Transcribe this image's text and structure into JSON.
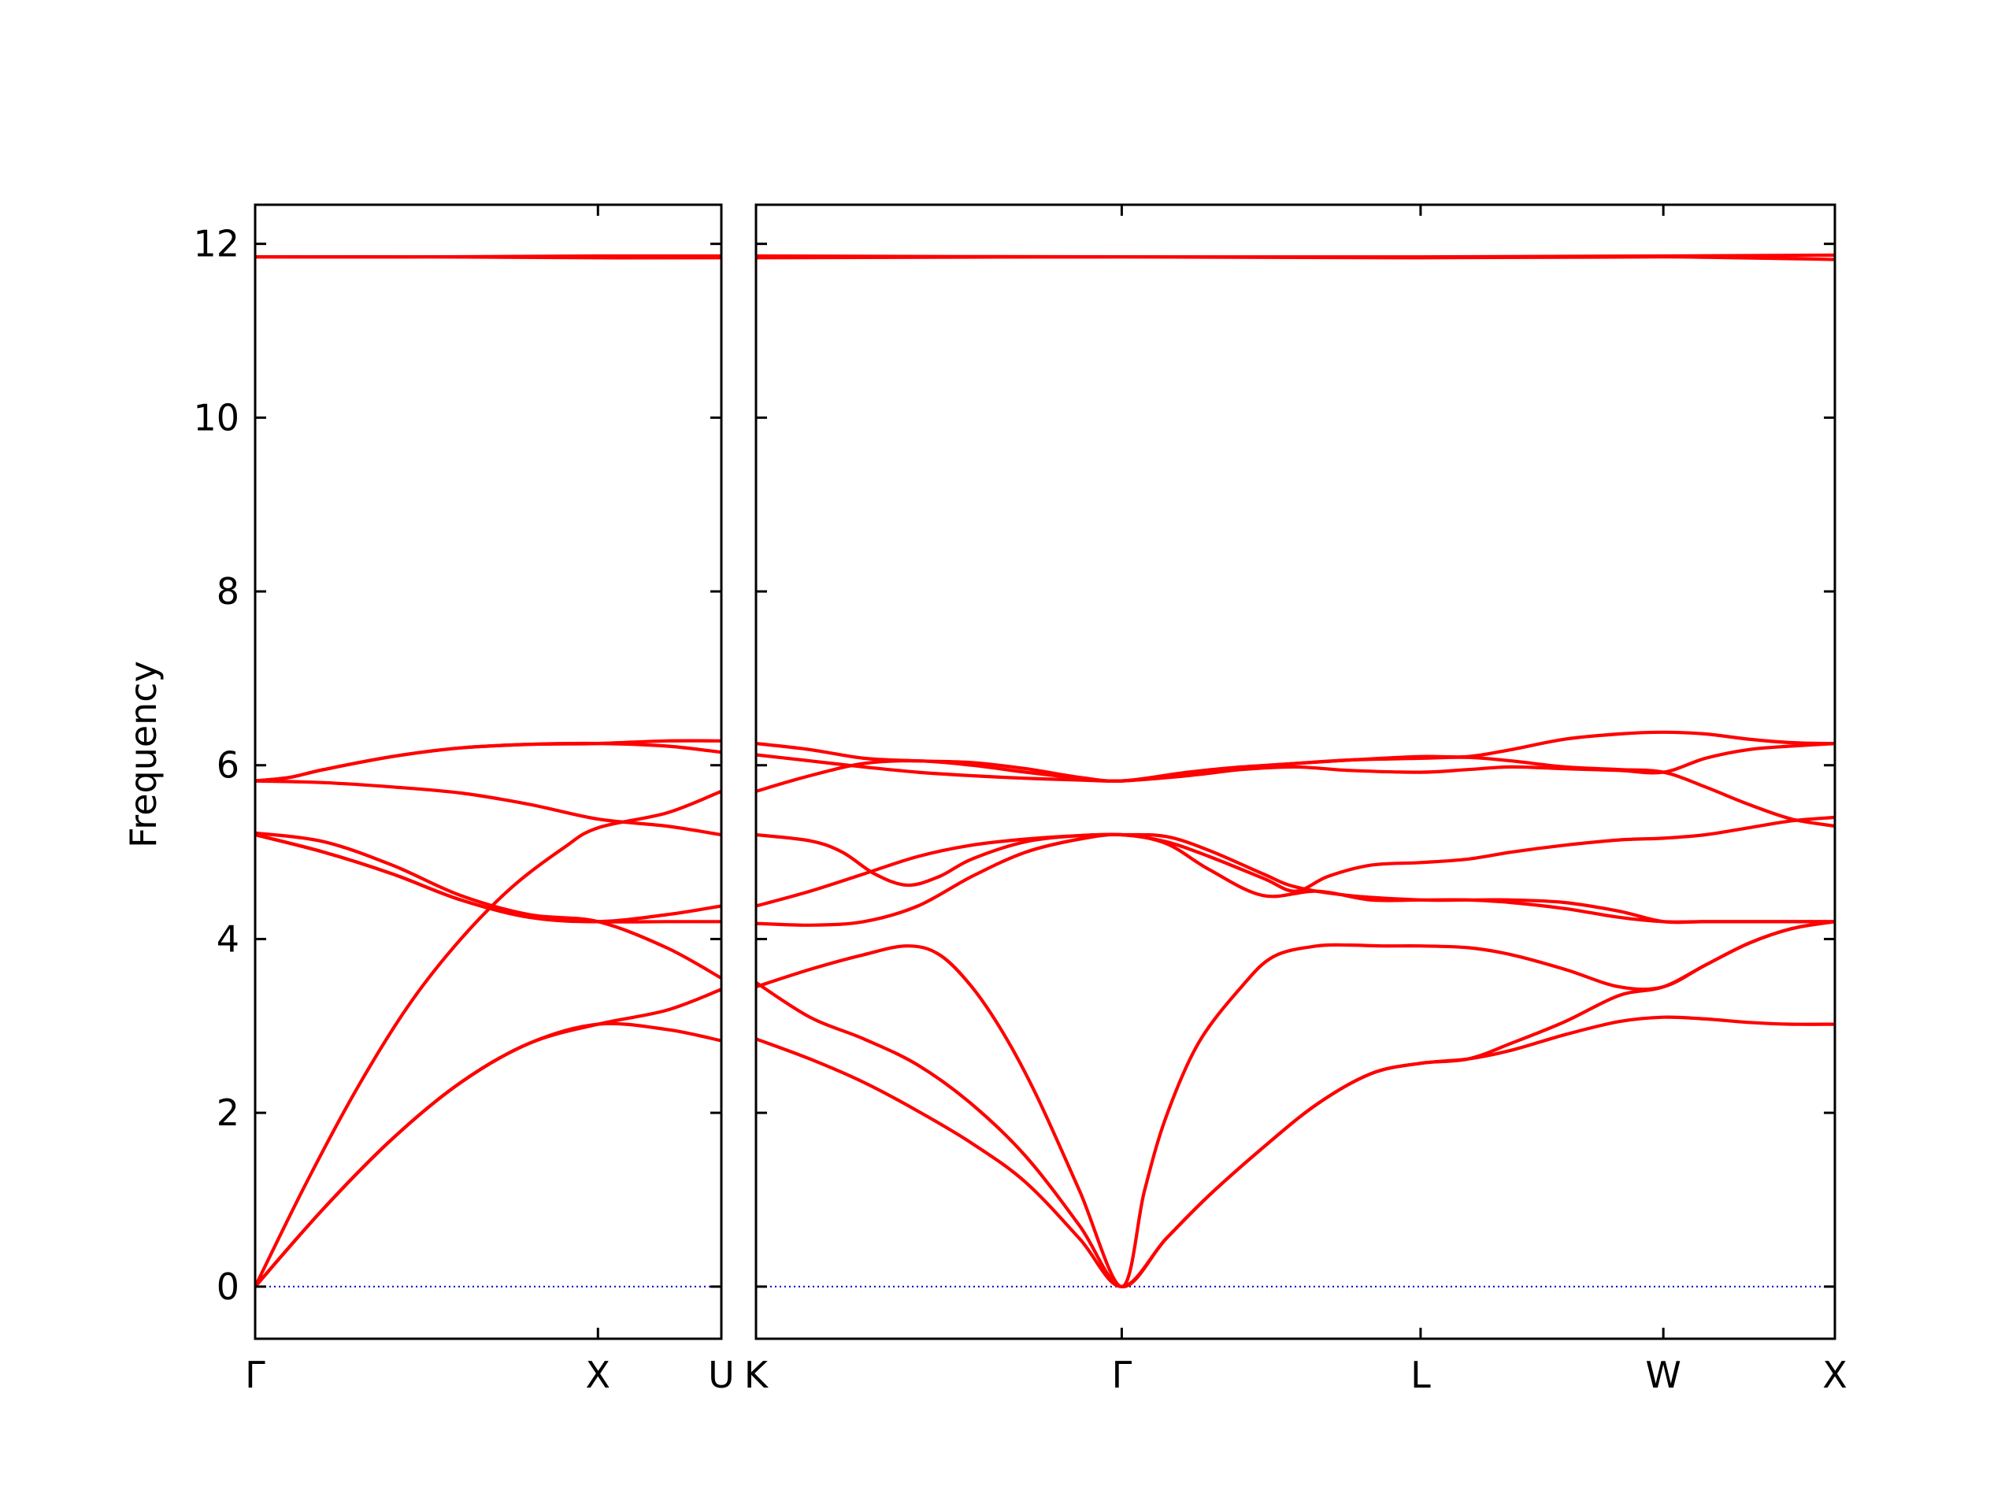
{
  "chart_data": {
    "type": "line",
    "ylabel": "Frequency",
    "ylim": [
      -0.6,
      12.45
    ],
    "yticks": [
      0,
      2,
      4,
      6,
      8,
      10,
      12
    ],
    "colors": {
      "bands": "#ff0000",
      "zero_line": "#0000cc",
      "frame": "#000000"
    },
    "panels": [
      {
        "name": "left",
        "xlim": [
          0,
          1.36
        ],
        "xticks": [
          {
            "label": "Γ",
            "x": 0
          },
          {
            "label": "X",
            "x": 1.0
          },
          {
            "label": "U",
            "x": 1.36
          }
        ],
        "bands": [
          {
            "x": [
              0,
              0.2,
              0.4,
              0.6,
              0.8,
              1.0,
              1.2,
              1.36
            ],
            "y": [
              0,
              0.9,
              1.7,
              2.35,
              2.8,
              3.02,
              2.96,
              2.83
            ]
          },
          {
            "x": [
              0,
              0.2,
              0.4,
              0.6,
              0.8,
              1.0,
              1.2,
              1.36
            ],
            "y": [
              0,
              0.9,
              1.7,
              2.35,
              2.8,
              3.02,
              3.18,
              3.42
            ]
          },
          {
            "x": [
              0,
              0.15,
              0.3,
              0.45,
              0.6,
              0.75,
              0.9,
              1.0,
              1.2,
              1.36
            ],
            "y": [
              0,
              1.2,
              2.3,
              3.25,
              4.0,
              4.6,
              5.05,
              5.28,
              5.45,
              5.7
            ]
          },
          {
            "x": [
              0,
              0.2,
              0.4,
              0.6,
              0.8,
              1.0,
              1.2,
              1.36
            ],
            "y": [
              5.22,
              5.12,
              4.85,
              4.5,
              4.28,
              4.2,
              3.9,
              3.55
            ]
          },
          {
            "x": [
              0,
              0.2,
              0.4,
              0.6,
              0.8,
              1.0,
              1.2,
              1.36
            ],
            "y": [
              5.2,
              5.0,
              4.75,
              4.45,
              4.25,
              4.2,
              4.2,
              4.2
            ]
          },
          {
            "x": [
              0,
              0.2,
              0.4,
              0.6,
              0.8,
              1.0,
              1.2,
              1.36
            ],
            "y": [
              5.2,
              5.0,
              4.75,
              4.45,
              4.25,
              4.2,
              4.28,
              4.38
            ]
          },
          {
            "x": [
              0,
              0.2,
              0.4,
              0.6,
              0.8,
              1.0,
              1.2,
              1.36
            ],
            "y": [
              5.82,
              5.8,
              5.75,
              5.68,
              5.55,
              5.38,
              5.3,
              5.2
            ]
          },
          {
            "x": [
              0,
              0.1,
              0.2,
              0.4,
              0.6,
              0.8,
              1.0,
              1.2,
              1.36
            ],
            "y": [
              5.82,
              5.86,
              5.95,
              6.1,
              6.2,
              6.24,
              6.25,
              6.22,
              6.15
            ]
          },
          {
            "x": [
              0,
              0.1,
              0.2,
              0.4,
              0.6,
              0.8,
              1.0,
              1.2,
              1.36
            ],
            "y": [
              5.82,
              5.86,
              5.95,
              6.1,
              6.2,
              6.24,
              6.25,
              6.28,
              6.28
            ]
          },
          {
            "x": [
              0,
              0.5,
              1.0,
              1.36
            ],
            "y": [
              11.85,
              11.85,
              11.84,
              11.84
            ]
          },
          {
            "x": [
              0,
              0.5,
              1.0,
              1.36
            ],
            "y": [
              11.85,
              11.85,
              11.86,
              11.86
            ]
          }
        ]
      },
      {
        "name": "right",
        "xlim": [
          0,
          1.0
        ],
        "xticks": [
          {
            "label": "K",
            "x": 0
          },
          {
            "label": "Γ",
            "x": 0.339
          },
          {
            "label": "L",
            "x": 0.616
          },
          {
            "label": "W",
            "x": 0.841
          },
          {
            "label": "X",
            "x": 1.0
          }
        ],
        "bands": [
          {
            "x": [
              0,
              0.05,
              0.1,
              0.15,
              0.2,
              0.25,
              0.3,
              0.339,
              0.38,
              0.42,
              0.47,
              0.52,
              0.57,
              0.616,
              0.66,
              0.7,
              0.75,
              0.8,
              0.841,
              0.88,
              0.92,
              0.96,
              1.0
            ],
            "y": [
              2.85,
              2.62,
              2.35,
              2.02,
              1.65,
              1.2,
              0.55,
              0,
              0.55,
              1.05,
              1.6,
              2.1,
              2.45,
              2.57,
              2.62,
              2.72,
              2.9,
              3.05,
              3.1,
              3.08,
              3.04,
              3.02,
              3.02
            ]
          },
          {
            "x": [
              0,
              0.05,
              0.1,
              0.15,
              0.2,
              0.25,
              0.3,
              0.339,
              0.38,
              0.42,
              0.47,
              0.52,
              0.57,
              0.616,
              0.66,
              0.7,
              0.75,
              0.8,
              0.841,
              0.88,
              0.92,
              0.96,
              1.0
            ],
            "y": [
              3.5,
              3.1,
              2.85,
              2.55,
              2.1,
              1.5,
              0.7,
              0,
              0.55,
              1.05,
              1.6,
              2.1,
              2.45,
              2.57,
              2.62,
              2.8,
              3.05,
              3.35,
              3.45,
              3.7,
              3.95,
              4.12,
              4.2
            ]
          },
          {
            "x": [
              0,
              0.05,
              0.1,
              0.14,
              0.17,
              0.2,
              0.23,
              0.26,
              0.3,
              0.339,
              0.36,
              0.38,
              0.41,
              0.45,
              0.48,
              0.52,
              0.55,
              0.58,
              0.616,
              0.66,
              0.7,
              0.75,
              0.8,
              0.841,
              0.88,
              0.92,
              0.96,
              1.0
            ],
            "y": [
              3.45,
              3.65,
              3.82,
              3.92,
              3.82,
              3.45,
              2.9,
              2.2,
              1.1,
              0,
              1.1,
              1.95,
              2.8,
              3.45,
              3.8,
              3.92,
              3.93,
              3.92,
              3.92,
              3.9,
              3.82,
              3.65,
              3.45,
              3.45,
              3.7,
              3.95,
              4.12,
              4.2
            ]
          },
          {
            "x": [
              0,
              0.05,
              0.1,
              0.15,
              0.2,
              0.25,
              0.3,
              0.339,
              0.38,
              0.42,
              0.47,
              0.52,
              0.57,
              0.616,
              0.66,
              0.7,
              0.75,
              0.8,
              0.841,
              0.88,
              0.92,
              0.96,
              1.0
            ],
            "y": [
              4.18,
              4.16,
              4.2,
              4.38,
              4.72,
              5.0,
              5.15,
              5.2,
              5.1,
              4.8,
              4.5,
              4.55,
              4.45,
              4.45,
              4.45,
              4.42,
              4.35,
              4.25,
              4.2,
              4.2,
              4.2,
              4.2,
              4.2
            ]
          },
          {
            "x": [
              0,
              0.05,
              0.08,
              0.11,
              0.14,
              0.17,
              0.2,
              0.25,
              0.3,
              0.339,
              0.38,
              0.42,
              0.47,
              0.5,
              0.55,
              0.616,
              0.66,
              0.7,
              0.75,
              0.8,
              0.841,
              0.88,
              0.92,
              0.96,
              1.0
            ],
            "y": [
              5.2,
              5.13,
              5.0,
              4.75,
              4.62,
              4.72,
              4.92,
              5.12,
              5.19,
              5.2,
              5.18,
              5.02,
              4.75,
              4.6,
              4.5,
              4.45,
              4.45,
              4.45,
              4.42,
              4.32,
              4.2,
              4.2,
              4.2,
              4.2,
              4.2
            ]
          },
          {
            "x": [
              0,
              0.05,
              0.1,
              0.15,
              0.2,
              0.25,
              0.3,
              0.339,
              0.38,
              0.42,
              0.47,
              0.5,
              0.53,
              0.57,
              0.616,
              0.66,
              0.7,
              0.75,
              0.8,
              0.841,
              0.88,
              0.92,
              0.96,
              1.0
            ],
            "y": [
              4.38,
              4.55,
              4.75,
              4.95,
              5.08,
              5.15,
              5.19,
              5.2,
              5.12,
              4.95,
              4.7,
              4.55,
              4.72,
              4.85,
              4.88,
              4.92,
              5.0,
              5.08,
              5.14,
              5.16,
              5.2,
              5.28,
              5.36,
              5.4
            ]
          },
          {
            "x": [
              0,
              0.05,
              0.1,
              0.15,
              0.2,
              0.25,
              0.3,
              0.339,
              0.4,
              0.45,
              0.5,
              0.55,
              0.616,
              0.66,
              0.7,
              0.75,
              0.8,
              0.841,
              0.88,
              0.92,
              0.96,
              1.0
            ],
            "y": [
              5.7,
              5.88,
              6.02,
              6.05,
              6.0,
              5.92,
              5.85,
              5.82,
              5.9,
              5.97,
              6.02,
              6.06,
              6.08,
              6.09,
              6.05,
              5.98,
              5.95,
              5.92,
              5.75,
              5.55,
              5.38,
              5.3
            ]
          },
          {
            "x": [
              0,
              0.05,
              0.1,
              0.15,
              0.2,
              0.25,
              0.3,
              0.339,
              0.4,
              0.45,
              0.5,
              0.55,
              0.616,
              0.66,
              0.7,
              0.75,
              0.8,
              0.841,
              0.88,
              0.92,
              0.96,
              1.0
            ],
            "y": [
              6.12,
              6.05,
              5.98,
              5.92,
              5.88,
              5.85,
              5.83,
              5.82,
              5.88,
              5.95,
              5.98,
              5.94,
              5.92,
              5.95,
              5.98,
              5.96,
              5.94,
              5.92,
              6.08,
              6.18,
              6.22,
              6.25
            ]
          },
          {
            "x": [
              0,
              0.05,
              0.1,
              0.15,
              0.2,
              0.25,
              0.3,
              0.339,
              0.4,
              0.45,
              0.5,
              0.55,
              0.616,
              0.66,
              0.7,
              0.75,
              0.8,
              0.841,
              0.88,
              0.92,
              0.96,
              1.0
            ],
            "y": [
              6.25,
              6.18,
              6.08,
              6.05,
              6.03,
              5.96,
              5.86,
              5.82,
              5.92,
              5.98,
              6.02,
              6.06,
              6.1,
              6.1,
              6.18,
              6.3,
              6.36,
              6.38,
              6.36,
              6.3,
              6.26,
              6.25
            ]
          },
          {
            "x": [
              0,
              0.339,
              0.616,
              0.841,
              1.0
            ],
            "y": [
              11.84,
              11.85,
              11.84,
              11.85,
              11.82
            ]
          },
          {
            "x": [
              0,
              0.339,
              0.616,
              0.841,
              1.0
            ],
            "y": [
              11.86,
              11.85,
              11.85,
              11.86,
              11.87
            ]
          }
        ]
      }
    ]
  }
}
